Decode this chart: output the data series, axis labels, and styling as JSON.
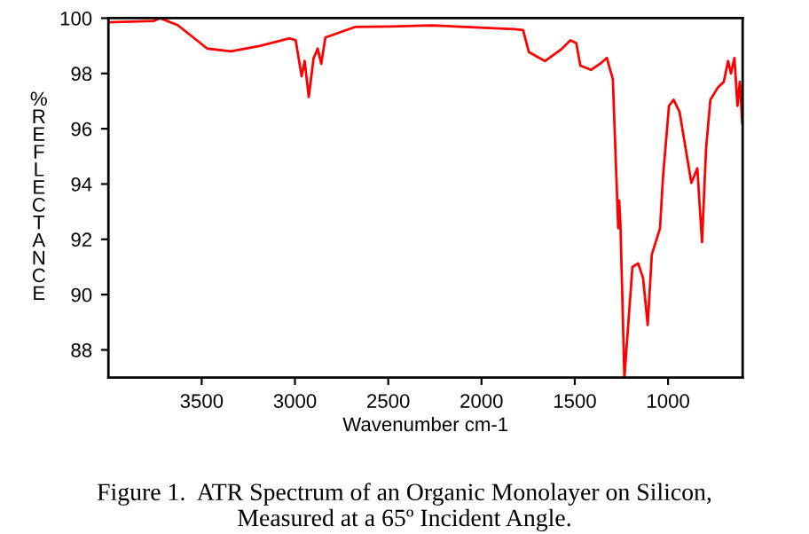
{
  "chart_data": {
    "type": "line",
    "xlabel": "Wavenumber cm-1",
    "ylabel": "%REFLECTANCE",
    "annotations": [
      "Figure 1.  ATR Spectrum of an Organic Monolayer on Silicon,\nMeasured at a 65º Incident Angle."
    ],
    "xlim": [
      4000,
      600
    ],
    "xticks": [
      3500,
      3000,
      2500,
      2000,
      1500,
      1000
    ],
    "ylim": [
      87,
      100
    ],
    "yticks": [
      88,
      90,
      92,
      94,
      96,
      98,
      100
    ],
    "grid": false,
    "legend": false,
    "marker": "none",
    "line_style": "solid",
    "series": [
      {
        "color": "#ff0000",
        "x": [
          4000,
          3756,
          3724,
          3629,
          3470,
          3344,
          3185,
          3028,
          2996,
          2964,
          2948,
          2926,
          2900,
          2878,
          2859,
          2837,
          2679,
          2488,
          2266,
          1824,
          1777,
          1746,
          1660,
          1571,
          1524,
          1492,
          1470,
          1413,
          1366,
          1328,
          1296,
          1277,
          1267,
          1262,
          1255,
          1234,
          1191,
          1160,
          1134,
          1109,
          1087,
          1043,
          1027,
          995,
          970,
          938,
          906,
          875,
          843,
          818,
          796,
          773,
          732,
          701,
          678,
          663,
          644,
          628,
          615,
          602
        ],
        "values": [
          99.85,
          99.9,
          100,
          99.75,
          98.9,
          98.8,
          99.0,
          99.27,
          99.2,
          97.9,
          98.45,
          97.15,
          98.55,
          98.9,
          98.35,
          99.3,
          99.68,
          99.7,
          99.74,
          99.6,
          99.57,
          98.77,
          98.45,
          98.88,
          99.2,
          99.1,
          98.28,
          98.13,
          98.34,
          98.56,
          97.8,
          94.25,
          92.4,
          93.4,
          92.5,
          87.0,
          91.0,
          91.13,
          90.6,
          88.9,
          91.45,
          92.4,
          94.25,
          96.83,
          97.05,
          96.6,
          95.3,
          94.04,
          94.57,
          91.9,
          95.3,
          97.05,
          97.5,
          97.7,
          98.45,
          98.0,
          98.56,
          96.83,
          97.7,
          96.2
        ]
      }
    ]
  }
}
